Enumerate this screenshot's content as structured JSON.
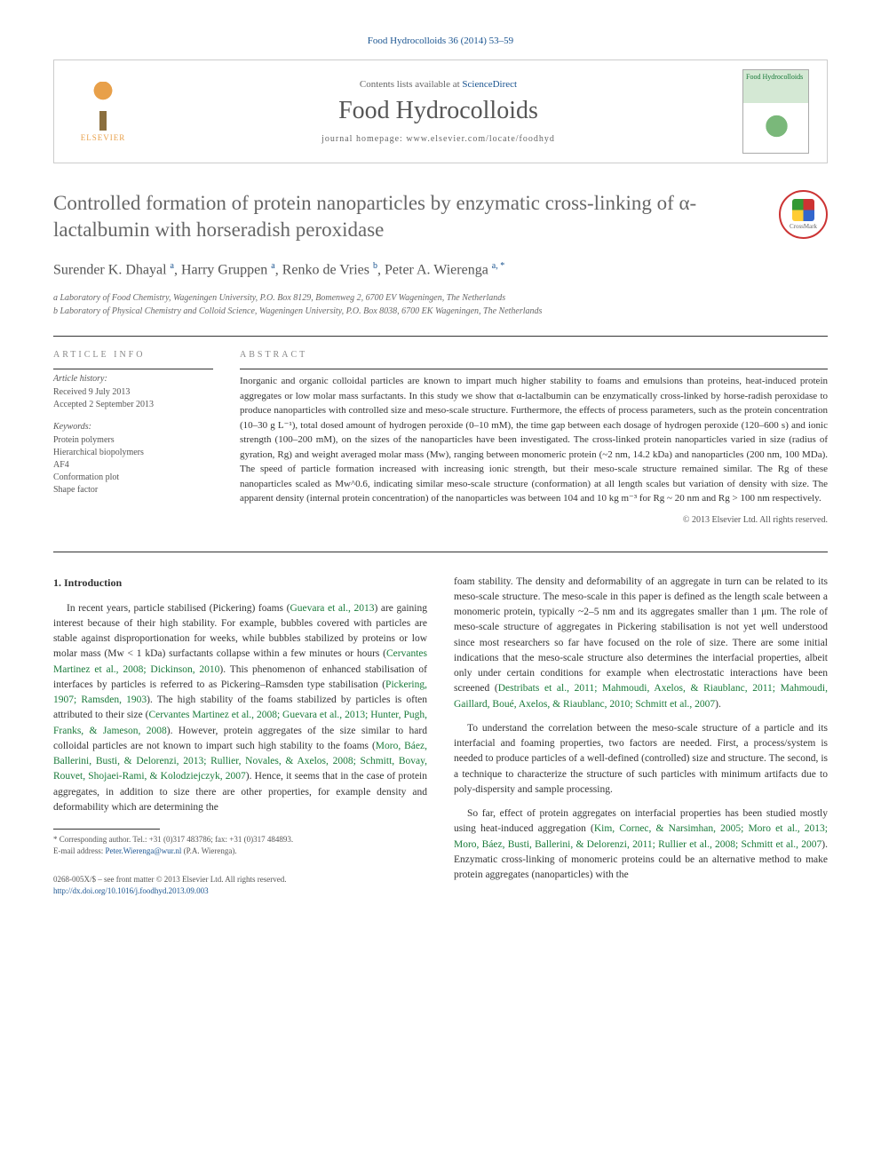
{
  "header_ref": "Food Hydrocolloids 36 (2014) 53–59",
  "masthead": {
    "elsevier_label": "ELSEVIER",
    "contents_prefix": "Contents lists available at ",
    "contents_link": "ScienceDirect",
    "journal_name": "Food Hydrocolloids",
    "homepage_label": "journal homepage: ",
    "homepage_url": "www.elsevier.com/locate/foodhyd",
    "cover_text": "Food Hydrocolloids"
  },
  "crossmark_label": "CrossMark",
  "article": {
    "title": "Controlled formation of protein nanoparticles by enzymatic cross-linking of α-lactalbumin with horseradish peroxidase",
    "authors_html": "Surender K. Dhayal <sup>a</sup>, Harry Gruppen <sup>a</sup>, Renko de Vries <sup>b</sup>, Peter A. Wierenga <sup>a, *</sup>",
    "affiliations": [
      "a Laboratory of Food Chemistry, Wageningen University, P.O. Box 8129, Bomenweg 2, 6700 EV Wageningen, The Netherlands",
      "b Laboratory of Physical Chemistry and Colloid Science, Wageningen University, P.O. Box 8038, 6700 EK Wageningen, The Netherlands"
    ]
  },
  "info": {
    "heading": "ARTICLE INFO",
    "history_label": "Article history:",
    "received": "Received 9 July 2013",
    "accepted": "Accepted 2 September 2013",
    "keywords_label": "Keywords:",
    "keywords": [
      "Protein polymers",
      "Hierarchical biopolymers",
      "AF4",
      "Conformation plot",
      "Shape factor"
    ]
  },
  "abstract": {
    "heading": "ABSTRACT",
    "text": "Inorganic and organic colloidal particles are known to impart much higher stability to foams and emulsions than proteins, heat-induced protein aggregates or low molar mass surfactants. In this study we show that α-lactalbumin can be enzymatically cross-linked by horse-radish peroxidase to produce nanoparticles with controlled size and meso-scale structure. Furthermore, the effects of process parameters, such as the protein concentration (10–30 g L⁻¹), total dosed amount of hydrogen peroxide (0–10 mM), the time gap between each dosage of hydrogen peroxide (120–600 s) and ionic strength (100–200 mM), on the sizes of the nanoparticles have been investigated. The cross-linked protein nanoparticles varied in size (radius of gyration, Rg) and weight averaged molar mass (Mw), ranging between monomeric protein (~2 nm, 14.2 kDa) and nanoparticles (200 nm, 100 MDa). The speed of particle formation increased with increasing ionic strength, but their meso-scale structure remained similar. The Rg of these nanoparticles scaled as Mw^0.6, indicating similar meso-scale structure (conformation) at all length scales but variation of density with size. The apparent density (internal protein concentration) of the nanoparticles was between 104 and 10 kg m⁻³ for Rg ~ 20 nm and Rg > 100 nm respectively.",
    "copyright": "© 2013 Elsevier Ltd. All rights reserved."
  },
  "body": {
    "section_number": "1.",
    "section_title": "Introduction",
    "col1": {
      "p1_a": "In recent years, particle stabilised (Pickering) foams (",
      "p1_ref1": "Guevara et al., 2013",
      "p1_b": ") are gaining interest because of their high stability. For example, bubbles covered with particles are stable against disproportionation for weeks, while bubbles stabilized by proteins or low molar mass (Mw < 1 kDa) surfactants collapse within a few minutes or hours (",
      "p1_ref2": "Cervantes Martinez et al., 2008; Dickinson, 2010",
      "p1_c": "). This phenomenon of enhanced stabilisation of interfaces by particles is referred to as Pickering–Ramsden type stabilisation (",
      "p1_ref3": "Pickering, 1907; Ramsden, 1903",
      "p1_d": "). The high stability of the foams stabilized by particles is often attributed to their size (",
      "p1_ref4": "Cervantes Martinez et al., 2008; Guevara et al., 2013; Hunter, Pugh, Franks, & Jameson, 2008",
      "p1_e": "). However, protein aggregates of the size similar to hard colloidal particles are not known to impart such high stability to the foams (",
      "p1_ref5": "Moro, Báez, Ballerini, Busti, & Delorenzi, 2013; Rullier, Novales, & Axelos, 2008; Schmitt, Bovay, Rouvet, Shojaei-Rami, & Kolodziejczyk, 2007",
      "p1_f": "). Hence, it seems that in the case of protein aggregates, in addition to size there are other properties, for example density and deformability which are determining the"
    },
    "col2": {
      "p1_a": "foam stability. The density and deformability of an aggregate in turn can be related to its meso-scale structure. The meso-scale in this paper is defined as the length scale between a monomeric protein, typically ~2–5 nm and its aggregates smaller than 1 μm. The role of meso-scale structure of aggregates in Pickering stabilisation is not yet well understood since most researchers so far have focused on the role of size. There are some initial indications that the meso-scale structure also determines the interfacial properties, albeit only under certain conditions for example when electrostatic interactions have been screened (",
      "p1_ref1": "Destribats et al., 2011; Mahmoudi, Axelos, & Riaublanc, 2011; Mahmoudi, Gaillard, Boué, Axelos, & Riaublanc, 2010; Schmitt et al., 2007",
      "p1_b": ").",
      "p2": "To understand the correlation between the meso-scale structure of a particle and its interfacial and foaming properties, two factors are needed. First, a process/system is needed to produce particles of a well-defined (controlled) size and structure. The second, is a technique to characterize the structure of such particles with minimum artifacts due to poly-dispersity and sample processing.",
      "p3_a": "So far, effect of protein aggregates on interfacial properties has been studied mostly using heat-induced aggregation (",
      "p3_ref1": "Kim, Cornec, & Narsimhan, 2005; Moro et al., 2013; Moro, Báez, Busti, Ballerini, & Delorenzi, 2011; Rullier et al., 2008; Schmitt et al., 2007",
      "p3_b": "). Enzymatic cross-linking of monomeric proteins could be an alternative method to make protein aggregates (nanoparticles) with the"
    }
  },
  "footnote": {
    "corr": "* Corresponding author. Tel.: +31 (0)317 483786; fax: +31 (0)317 484893.",
    "email_label": "E-mail address: ",
    "email": "Peter.Wierenga@wur.nl",
    "email_suffix": " (P.A. Wierenga)."
  },
  "footer": {
    "issn": "0268-005X/$ – see front matter © 2013 Elsevier Ltd. All rights reserved.",
    "doi": "http://dx.doi.org/10.1016/j.foodhyd.2013.09.003"
  },
  "colors": {
    "link_blue": "#1a5490",
    "ref_green": "#1a7a3a",
    "text_gray": "#666666"
  }
}
